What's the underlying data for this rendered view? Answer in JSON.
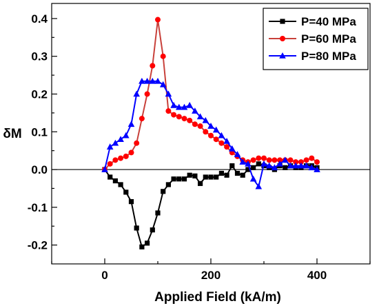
{
  "chart_data": {
    "type": "line",
    "title": "",
    "xlabel": "Applied Field (kA/m)",
    "ylabel": "δM",
    "xlim": [
      -100,
      500
    ],
    "ylim": [
      -0.25,
      0.44
    ],
    "xticks": [
      0,
      200,
      400
    ],
    "yticks": [
      -0.2,
      -0.1,
      0.0,
      0.1,
      0.2,
      0.3,
      0.4
    ],
    "ytick_labels": [
      "-0.2",
      "-0.1",
      "0.0",
      "0.1",
      "0.2",
      "0.3",
      "0.4"
    ],
    "zero_line": true,
    "legend_position": "top-right",
    "series": [
      {
        "name": "P=40 MPa",
        "color": "#000000",
        "marker": "square",
        "x": [
          0,
          10,
          20,
          30,
          40,
          50,
          60,
          70,
          80,
          90,
          100,
          110,
          120,
          130,
          140,
          150,
          160,
          170,
          180,
          190,
          200,
          210,
          220,
          230,
          240,
          250,
          260,
          270,
          280,
          290,
          300,
          310,
          320,
          330,
          340,
          350,
          360,
          370,
          380,
          390,
          400
        ],
        "y": [
          0.0,
          -0.02,
          -0.03,
          -0.04,
          -0.06,
          -0.085,
          -0.155,
          -0.205,
          -0.195,
          -0.16,
          -0.115,
          -0.058,
          -0.04,
          -0.025,
          -0.025,
          -0.025,
          -0.015,
          -0.017,
          -0.037,
          -0.02,
          -0.02,
          -0.02,
          -0.01,
          -0.015,
          0.01,
          -0.01,
          -0.015,
          0.0,
          0.005,
          0.015,
          0.01,
          0.005,
          0.0,
          0.01,
          0.005,
          0.01,
          0.005,
          0.005,
          0.01,
          0.01,
          0.005
        ]
      },
      {
        "name": "P=60 MPa",
        "color": "#ff0000",
        "marker": "circle",
        "x": [
          0,
          10,
          20,
          30,
          40,
          50,
          60,
          70,
          80,
          90,
          100,
          110,
          120,
          130,
          140,
          150,
          160,
          170,
          180,
          190,
          200,
          210,
          220,
          230,
          240,
          250,
          260,
          270,
          280,
          290,
          300,
          310,
          320,
          330,
          340,
          350,
          360,
          370,
          380,
          390,
          400
        ],
        "y": [
          0.0,
          0.015,
          0.025,
          0.03,
          0.035,
          0.045,
          0.07,
          0.135,
          0.2,
          0.275,
          0.397,
          0.3,
          0.155,
          0.145,
          0.14,
          0.135,
          0.13,
          0.12,
          0.115,
          0.1,
          0.09,
          0.08,
          0.07,
          0.06,
          0.045,
          0.035,
          0.025,
          0.02,
          0.025,
          0.03,
          0.03,
          0.025,
          0.025,
          0.025,
          0.025,
          0.025,
          0.02,
          0.02,
          0.025,
          0.03,
          0.02
        ]
      },
      {
        "name": "P=80 MPa",
        "color": "#0000ff",
        "marker": "triangle",
        "x": [
          0,
          10,
          20,
          30,
          40,
          50,
          60,
          70,
          80,
          90,
          100,
          110,
          120,
          130,
          140,
          150,
          160,
          170,
          180,
          190,
          200,
          210,
          220,
          230,
          240,
          250,
          260,
          270,
          280,
          290,
          300,
          310,
          320,
          330,
          340,
          350,
          360,
          370,
          380,
          390,
          400
        ],
        "y": [
          0.0,
          0.06,
          0.07,
          0.08,
          0.09,
          0.12,
          0.2,
          0.234,
          0.234,
          0.234,
          0.234,
          0.225,
          0.2,
          0.17,
          0.165,
          0.165,
          0.17,
          0.155,
          0.14,
          0.13,
          0.115,
          0.105,
          0.09,
          0.075,
          0.055,
          0.04,
          0.02,
          0.015,
          -0.025,
          -0.045,
          0.015,
          0.01,
          0.005,
          0.015,
          0.025,
          0.01,
          0.01,
          0.01,
          0.01,
          0.005,
          0.0
        ]
      }
    ]
  }
}
